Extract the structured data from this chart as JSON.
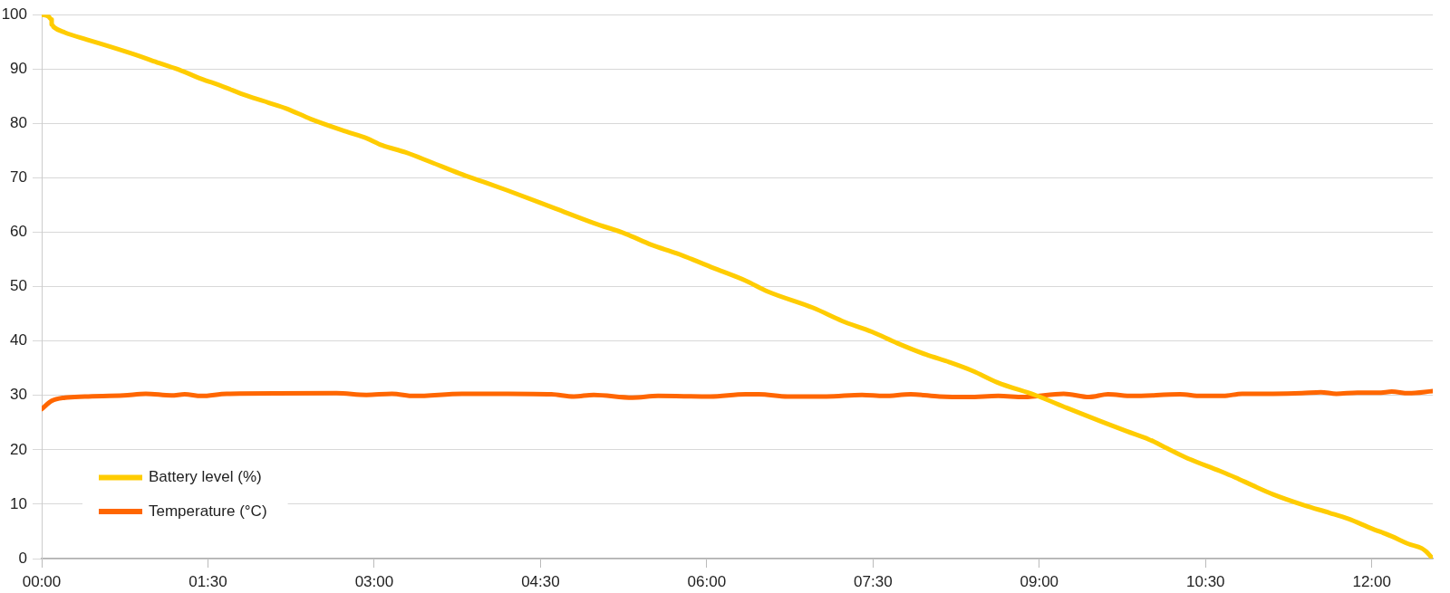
{
  "chart_data": {
    "type": "line",
    "xlim": [
      0,
      12.55
    ],
    "xticks": [
      {
        "value": 0,
        "label": "00:00"
      },
      {
        "value": 1.5,
        "label": "01:30"
      },
      {
        "value": 3,
        "label": "03:00"
      },
      {
        "value": 4.5,
        "label": "04:30"
      },
      {
        "value": 6,
        "label": "06:00"
      },
      {
        "value": 7.5,
        "label": "07:30"
      },
      {
        "value": 9,
        "label": "09:00"
      },
      {
        "value": 10.5,
        "label": "10:30"
      },
      {
        "value": 12,
        "label": "12:00"
      }
    ],
    "ylim": [
      0,
      100
    ],
    "yticks": [
      0,
      10,
      20,
      30,
      40,
      50,
      60,
      70,
      80,
      90,
      100
    ],
    "grid": "y",
    "legend": "bottom left",
    "marker": "none",
    "line_style": "solid",
    "series": [
      {
        "name": "Battery level (%)",
        "color": "#ffcc00",
        "x": [
          0,
          0.06,
          0.09,
          0.09,
          0.11,
          0.21,
          0.41,
          0.62,
          0.85,
          1.06,
          1.26,
          1.44,
          1.61,
          1.85,
          2.05,
          2.2,
          2.43,
          2.75,
          2.93,
          3.07,
          3.28,
          3.51,
          3.77,
          3.98,
          4.2,
          4.63,
          4.98,
          5.27,
          5.5,
          5.73,
          6.09,
          6.35,
          6.55,
          6.96,
          7.22,
          7.49,
          7.72,
          7.98,
          8.19,
          8.4,
          8.62,
          8.97,
          9.25,
          9.56,
          9.79,
          9.99,
          10.15,
          10.32,
          10.63,
          10.77,
          10.92,
          11.11,
          11.39,
          11.62,
          11.79,
          11.99,
          12.18,
          12.33,
          12.45,
          12.49,
          12.55
        ],
        "values": [
          100,
          99.7,
          99.1,
          98.2,
          97.7,
          96.7,
          95.4,
          94.1,
          92.6,
          91.1,
          89.7,
          88.2,
          87.0,
          85.1,
          83.8,
          82.8,
          80.8,
          78.5,
          77.3,
          76.0,
          74.7,
          72.9,
          70.8,
          69.3,
          67.7,
          64.4,
          61.7,
          59.7,
          57.7,
          56.1,
          53.2,
          51.1,
          49.1,
          46.1,
          43.7,
          41.7,
          39.6,
          37.5,
          36.1,
          34.5,
          32.4,
          30.0,
          27.7,
          25.2,
          23.4,
          21.9,
          20.3,
          18.6,
          16.1,
          14.9,
          13.5,
          11.8,
          9.8,
          8.4,
          7.3,
          5.6,
          4.1,
          2.7,
          1.9,
          1.3,
          0
        ]
      },
      {
        "name": "Temperature (°C)",
        "color": "#ff6600",
        "x": [
          0,
          0.09,
          0.21,
          0.39,
          0.74,
          0.94,
          1.17,
          1.29,
          1.44,
          1.67,
          2.66,
          2.93,
          3.16,
          3.36,
          3.8,
          4.21,
          4.6,
          4.8,
          4.98,
          5.33,
          5.56,
          6.03,
          6.35,
          6.47,
          6.73,
          7.08,
          7.4,
          7.6,
          7.84,
          8.1,
          8.36,
          8.63,
          8.86,
          9.22,
          9.45,
          9.62,
          9.84,
          10.27,
          10.46,
          10.66,
          10.83,
          11.11,
          11.37,
          11.54,
          11.68,
          11.87,
          12.07,
          12.18,
          12.33,
          12.55
        ],
        "values": [
          27.5,
          29.0,
          29.6,
          29.8,
          30.0,
          30.3,
          30.0,
          30.2,
          29.9,
          30.3,
          30.4,
          30.1,
          30.3,
          29.9,
          30.3,
          30.3,
          30.2,
          29.8,
          30.1,
          29.6,
          29.9,
          29.8,
          30.2,
          30.2,
          29.8,
          29.8,
          30.1,
          29.9,
          30.2,
          29.8,
          29.7,
          29.9,
          29.7,
          30.3,
          29.7,
          30.2,
          29.9,
          30.2,
          29.9,
          29.9,
          30.3,
          30.3,
          30.4,
          30.6,
          30.3,
          30.5,
          30.5,
          30.7,
          30.4,
          30.8
        ]
      }
    ]
  }
}
